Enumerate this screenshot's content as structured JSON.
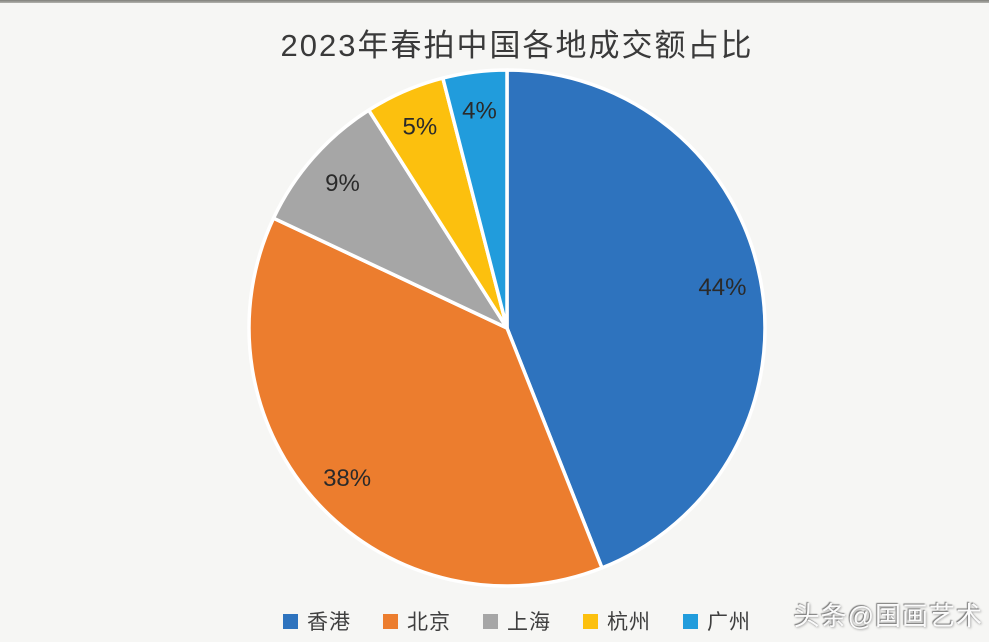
{
  "page": {
    "background": "#f6f6f4",
    "top_border_color": "#8e8e89"
  },
  "chart_data": {
    "type": "pie",
    "title": "2023年春拍中国各地成交额占比",
    "categories": [
      "香港",
      "北京",
      "上海",
      "杭州",
      "广州"
    ],
    "values": [
      44,
      38,
      9,
      5,
      4
    ],
    "value_labels": [
      "44%",
      "38%",
      "9%",
      "5%",
      "4%"
    ],
    "unit": "percent",
    "colors": [
      "#2e73be",
      "#ec7d2e",
      "#a6a6a6",
      "#fcc00e",
      "#219cdc"
    ],
    "start_angle_deg": 0,
    "direction": "clockwise",
    "slice_border_color": "#ffffff",
    "label_color": "#2a2a2a",
    "title_color": "#3a3a3a",
    "legend_position": "bottom",
    "legend_text_color": "#3f3f3f"
  },
  "watermark": {
    "text": "头条@国画艺术"
  }
}
